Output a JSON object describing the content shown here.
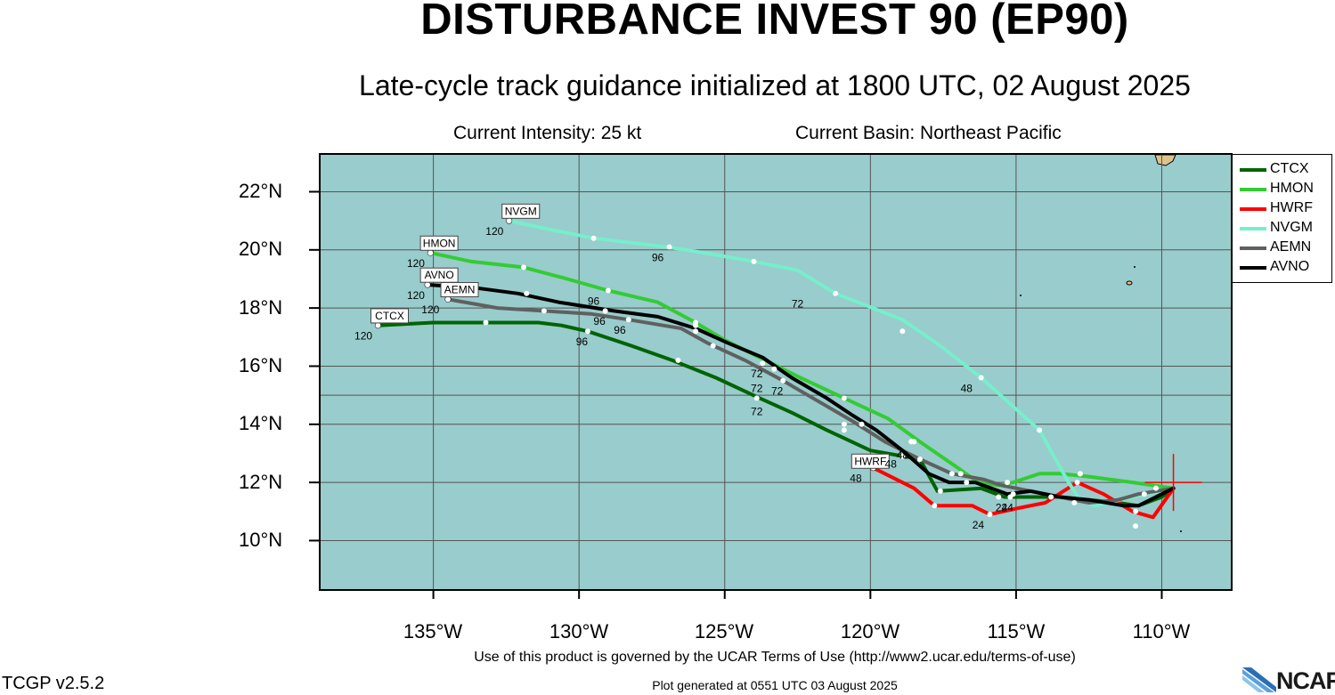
{
  "title": "DISTURBANCE INVEST 90 (EP90)",
  "subtitle": "Late-cycle track guidance initialized at 1800 UTC, 02 August 2025",
  "current_intensity": "Current Intensity: 25 kt",
  "current_basin": "Current Basin: Northeast Pacific",
  "terms": "Use of this product is governed by the UCAR Terms of Use (http://www2.ucar.edu/terms-of-use)",
  "version": "TCGP v2.5.2",
  "generated": "Plot generated at 0551 UTC   03 August 2025",
  "logo_text": "NCAR",
  "colors": {
    "ocean": "#99cccc",
    "land": "#dcc38e",
    "grid": "#555555",
    "CTCX": "#006400",
    "HMON": "#33cc33",
    "HWRF": "#ff0000",
    "NVGM": "#77eecc",
    "AEMN": "#606060",
    "AVNO": "#000000",
    "current_position": "#ff0000"
  },
  "lat_labels": [
    "22°N",
    "20°N",
    "18°N",
    "16°N",
    "14°N",
    "12°N",
    "10°N"
  ],
  "lon_labels": [
    "135°W",
    "130°W",
    "125°W",
    "120°W",
    "115°W",
    "110°W"
  ],
  "legend": [
    {
      "name": "CTCX"
    },
    {
      "name": "HMON"
    },
    {
      "name": "HWRF"
    },
    {
      "name": "NVGM"
    },
    {
      "name": "AEMN"
    },
    {
      "name": "AVNO"
    }
  ],
  "chart_data": {
    "type": "map-tracks",
    "xlim": [
      -138.9,
      -107.6
    ],
    "ylim": [
      8.3,
      23.3
    ],
    "current_position": [
      -109.6,
      12.0
    ],
    "tracks": [
      {
        "name": "CTCX",
        "path": [
          [
            -109.6,
            11.8
          ],
          [
            -110,
            11.5
          ],
          [
            -110.8,
            11.2
          ],
          [
            -111.5,
            11.3
          ],
          [
            -112.5,
            11.4
          ],
          [
            -113.5,
            11.5
          ],
          [
            -114.5,
            11.5
          ],
          [
            -115.4,
            11.5
          ],
          [
            -116.2,
            11.8
          ],
          [
            -117.7,
            11.7
          ],
          [
            -118.3,
            12.8
          ],
          [
            -120,
            13.1
          ],
          [
            -121.5,
            13.8
          ],
          [
            -122.7,
            14.4
          ],
          [
            -123.8,
            14.9
          ],
          [
            -125.3,
            15.6
          ],
          [
            -126.8,
            16.2
          ],
          [
            -128.2,
            16.7
          ],
          [
            -129.7,
            17.2
          ],
          [
            -130.6,
            17.4
          ],
          [
            -131.4,
            17.5
          ],
          [
            -133.2,
            17.5
          ],
          [
            -135,
            17.5
          ],
          [
            -136.9,
            17.4
          ]
        ],
        "points": [
          [
            -110.9,
            10.5
          ],
          [
            -115.6,
            11.5
          ],
          [
            -117.6,
            11.7
          ],
          [
            -118.3,
            12.8
          ],
          [
            -120.9,
            13.8
          ],
          [
            -123.9,
            14.9
          ],
          [
            -126.6,
            16.2
          ],
          [
            -129.7,
            17.2
          ],
          [
            -133.2,
            17.5
          ],
          [
            -136.9,
            17.4
          ]
        ],
        "hour_labels": [
          {
            "lon": -115.3,
            "lat": 11.2,
            "text": "24"
          },
          {
            "lon": -123.9,
            "lat": 14.5,
            "text": "72"
          },
          {
            "lon": -129.9,
            "lat": 16.9,
            "text": "96"
          },
          {
            "lon": -137.4,
            "lat": 17.1,
            "text": "120"
          }
        ],
        "end_label": {
          "lon": -136.5,
          "lat": 17.7,
          "text": "CTCX"
        }
      },
      {
        "name": "HMON",
        "path": [
          [
            -109.6,
            11.8
          ],
          [
            -111,
            12.0
          ],
          [
            -112.5,
            12.2
          ],
          [
            -113.5,
            12.3
          ],
          [
            -114.2,
            12.3
          ],
          [
            -115.1,
            12.0
          ],
          [
            -115.6,
            11.9
          ],
          [
            -116.3,
            12.0
          ],
          [
            -117,
            12.5
          ],
          [
            -118.3,
            13.4
          ],
          [
            -119.4,
            14.2
          ],
          [
            -120.9,
            14.9
          ],
          [
            -122.4,
            15.6
          ],
          [
            -123.6,
            16.2
          ],
          [
            -125,
            16.9
          ],
          [
            -126,
            17.5
          ],
          [
            -127.3,
            18.2
          ],
          [
            -129,
            18.6
          ],
          [
            -130.4,
            19.0
          ],
          [
            -131.9,
            19.4
          ],
          [
            -133.7,
            19.6
          ],
          [
            -135.1,
            19.9
          ]
        ],
        "points": [
          [
            -110.2,
            11.8
          ],
          [
            -112.8,
            12.3
          ],
          [
            -115.3,
            12.0
          ],
          [
            -116.9,
            12.3
          ],
          [
            -118.5,
            13.4
          ],
          [
            -120.9,
            14.9
          ],
          [
            -123.3,
            15.9
          ],
          [
            -126,
            17.5
          ],
          [
            -129,
            18.6
          ],
          [
            -131.9,
            19.4
          ],
          [
            -135.1,
            19.9
          ]
        ],
        "hour_labels": [
          {
            "lon": -123.9,
            "lat": 15.8,
            "text": "72"
          },
          {
            "lon": -129.5,
            "lat": 18.3,
            "text": "96"
          },
          {
            "lon": -135.6,
            "lat": 19.6,
            "text": "120"
          }
        ],
        "end_label": {
          "lon": -134.8,
          "lat": 20.2,
          "text": "HMON"
        }
      },
      {
        "name": "HWRF",
        "path": [
          [
            -109.6,
            11.8
          ],
          [
            -110.3,
            10.8
          ],
          [
            -111,
            11.0
          ],
          [
            -112,
            11.6
          ],
          [
            -112.9,
            12.0
          ],
          [
            -114,
            11.3
          ],
          [
            -115,
            11.1
          ],
          [
            -115.9,
            10.9
          ],
          [
            -116.5,
            11.2
          ],
          [
            -117.8,
            11.2
          ],
          [
            -118.5,
            11.8
          ],
          [
            -119.9,
            12.5
          ]
        ],
        "points": [
          [
            -112.9,
            12.0
          ],
          [
            -115.9,
            10.9
          ],
          [
            -117.8,
            11.2
          ],
          [
            -119.9,
            12.5
          ]
        ],
        "hour_labels": [
          {
            "lon": -116.3,
            "lat": 10.6,
            "text": "24"
          },
          {
            "lon": -120.5,
            "lat": 12.2,
            "text": "48"
          }
        ],
        "end_label": {
          "lon": -120.0,
          "lat": 12.7,
          "text": "HWRF"
        }
      },
      {
        "name": "NVGM",
        "path": [
          [
            -109.6,
            11.8
          ],
          [
            -111,
            11.5
          ],
          [
            -112.3,
            11.2
          ],
          [
            -112.8,
            11.4
          ],
          [
            -113.2,
            12.0
          ],
          [
            -114.2,
            13.8
          ],
          [
            -116.2,
            15.6
          ],
          [
            -117.6,
            16.7
          ],
          [
            -118.9,
            17.6
          ],
          [
            -121.2,
            18.5
          ],
          [
            -122.5,
            19.3
          ],
          [
            -124,
            19.6
          ],
          [
            -125.7,
            19.9
          ],
          [
            -127,
            20.1
          ],
          [
            -129.5,
            20.4
          ],
          [
            -131,
            20.7
          ],
          [
            -132.4,
            21.0
          ]
        ],
        "points": [
          [
            -112.8,
            12.3
          ],
          [
            -114.2,
            13.8
          ],
          [
            -116.2,
            15.6
          ],
          [
            -118.9,
            17.2
          ],
          [
            -121.2,
            18.5
          ],
          [
            -124,
            19.6
          ],
          [
            -126.9,
            20.1
          ],
          [
            -129.5,
            20.4
          ],
          [
            -132.4,
            21.0
          ]
        ],
        "hour_labels": [
          {
            "lon": -116.7,
            "lat": 15.3,
            "text": "48"
          },
          {
            "lon": -122.5,
            "lat": 18.2,
            "text": "72"
          },
          {
            "lon": -127.3,
            "lat": 19.8,
            "text": "96"
          },
          {
            "lon": -132.9,
            "lat": 20.7,
            "text": "120"
          }
        ],
        "end_label": {
          "lon": -132.0,
          "lat": 21.3,
          "text": "NVGM"
        }
      },
      {
        "name": "AEMN",
        "path": [
          [
            -109.6,
            11.8
          ],
          [
            -110.8,
            11.6
          ],
          [
            -111.5,
            11.4
          ],
          [
            -112.5,
            11.3
          ],
          [
            -113.5,
            11.5
          ],
          [
            -114.5,
            11.7
          ],
          [
            -115.5,
            11.9
          ],
          [
            -116.1,
            12.1
          ],
          [
            -117.2,
            12.3
          ],
          [
            -118.3,
            12.8
          ],
          [
            -119.5,
            13.4
          ],
          [
            -120.6,
            14.1
          ],
          [
            -121.8,
            14.8
          ],
          [
            -123,
            15.5
          ],
          [
            -124.3,
            16.2
          ],
          [
            -125.6,
            16.8
          ],
          [
            -126.5,
            17.3
          ],
          [
            -128.3,
            17.6
          ],
          [
            -129.6,
            17.8
          ],
          [
            -131.2,
            17.9
          ],
          [
            -132.8,
            18.0
          ],
          [
            -134.5,
            18.3
          ]
        ],
        "points": [
          [
            -110.6,
            11.6
          ],
          [
            -113,
            11.3
          ],
          [
            -115.1,
            11.6
          ],
          [
            -117.2,
            12.3
          ],
          [
            -118.9,
            12.9
          ],
          [
            -120.9,
            14.0
          ],
          [
            -123,
            15.5
          ],
          [
            -125.4,
            16.7
          ],
          [
            -126,
            17.2
          ],
          [
            -128.3,
            17.6
          ],
          [
            -131.2,
            17.9
          ],
          [
            -134.5,
            18.3
          ]
        ],
        "hour_labels": [
          {
            "lon": -115.5,
            "lat": 11.2,
            "text": "24"
          },
          {
            "lon": -119.3,
            "lat": 12.7,
            "text": "48"
          },
          {
            "lon": -123.2,
            "lat": 15.2,
            "text": "72"
          },
          {
            "lon": -128.6,
            "lat": 17.3,
            "text": "96"
          },
          {
            "lon": -135.1,
            "lat": 18.0,
            "text": "120"
          }
        ],
        "end_label": {
          "lon": -134.1,
          "lat": 18.6,
          "text": "AEMN"
        }
      },
      {
        "name": "AVNO",
        "path": [
          [
            -109.6,
            11.8
          ],
          [
            -110.8,
            11.2
          ],
          [
            -111.3,
            11.2
          ],
          [
            -112.5,
            11.4
          ],
          [
            -113.5,
            11.5
          ],
          [
            -114.5,
            11.7
          ],
          [
            -115.3,
            11.6
          ],
          [
            -116.4,
            12.0
          ],
          [
            -117.3,
            12.0
          ],
          [
            -118,
            12.3
          ],
          [
            -118.9,
            13.1
          ],
          [
            -119.8,
            13.8
          ],
          [
            -120.6,
            14.3
          ],
          [
            -121.5,
            14.9
          ],
          [
            -122.7,
            15.6
          ],
          [
            -123.7,
            16.3
          ],
          [
            -124.9,
            16.8
          ],
          [
            -126,
            17.3
          ],
          [
            -127.3,
            17.7
          ],
          [
            -128.8,
            17.9
          ],
          [
            -130.7,
            18.2
          ],
          [
            -132.1,
            18.5
          ],
          [
            -133.6,
            18.7
          ],
          [
            -135.2,
            18.8
          ]
        ],
        "points": [
          [
            -110.9,
            11.0
          ],
          [
            -113.8,
            11.5
          ],
          [
            -115.2,
            11.5
          ],
          [
            -116.7,
            12.0
          ],
          [
            -118.6,
            13.4
          ],
          [
            -120.3,
            14.0
          ],
          [
            -123.7,
            16.1
          ],
          [
            -126,
            17.4
          ],
          [
            -129.1,
            17.9
          ],
          [
            -131.8,
            18.5
          ],
          [
            -135.2,
            18.8
          ]
        ],
        "hour_labels": [
          {
            "lon": -118.9,
            "lat": 13.0,
            "text": "48"
          },
          {
            "lon": -123.9,
            "lat": 15.3,
            "text": "72"
          },
          {
            "lon": -129.3,
            "lat": 17.6,
            "text": "96"
          },
          {
            "lon": -135.6,
            "lat": 18.5,
            "text": "120"
          }
        ],
        "end_label": {
          "lon": -134.8,
          "lat": 19.1,
          "text": "AVNO"
        }
      }
    ]
  }
}
